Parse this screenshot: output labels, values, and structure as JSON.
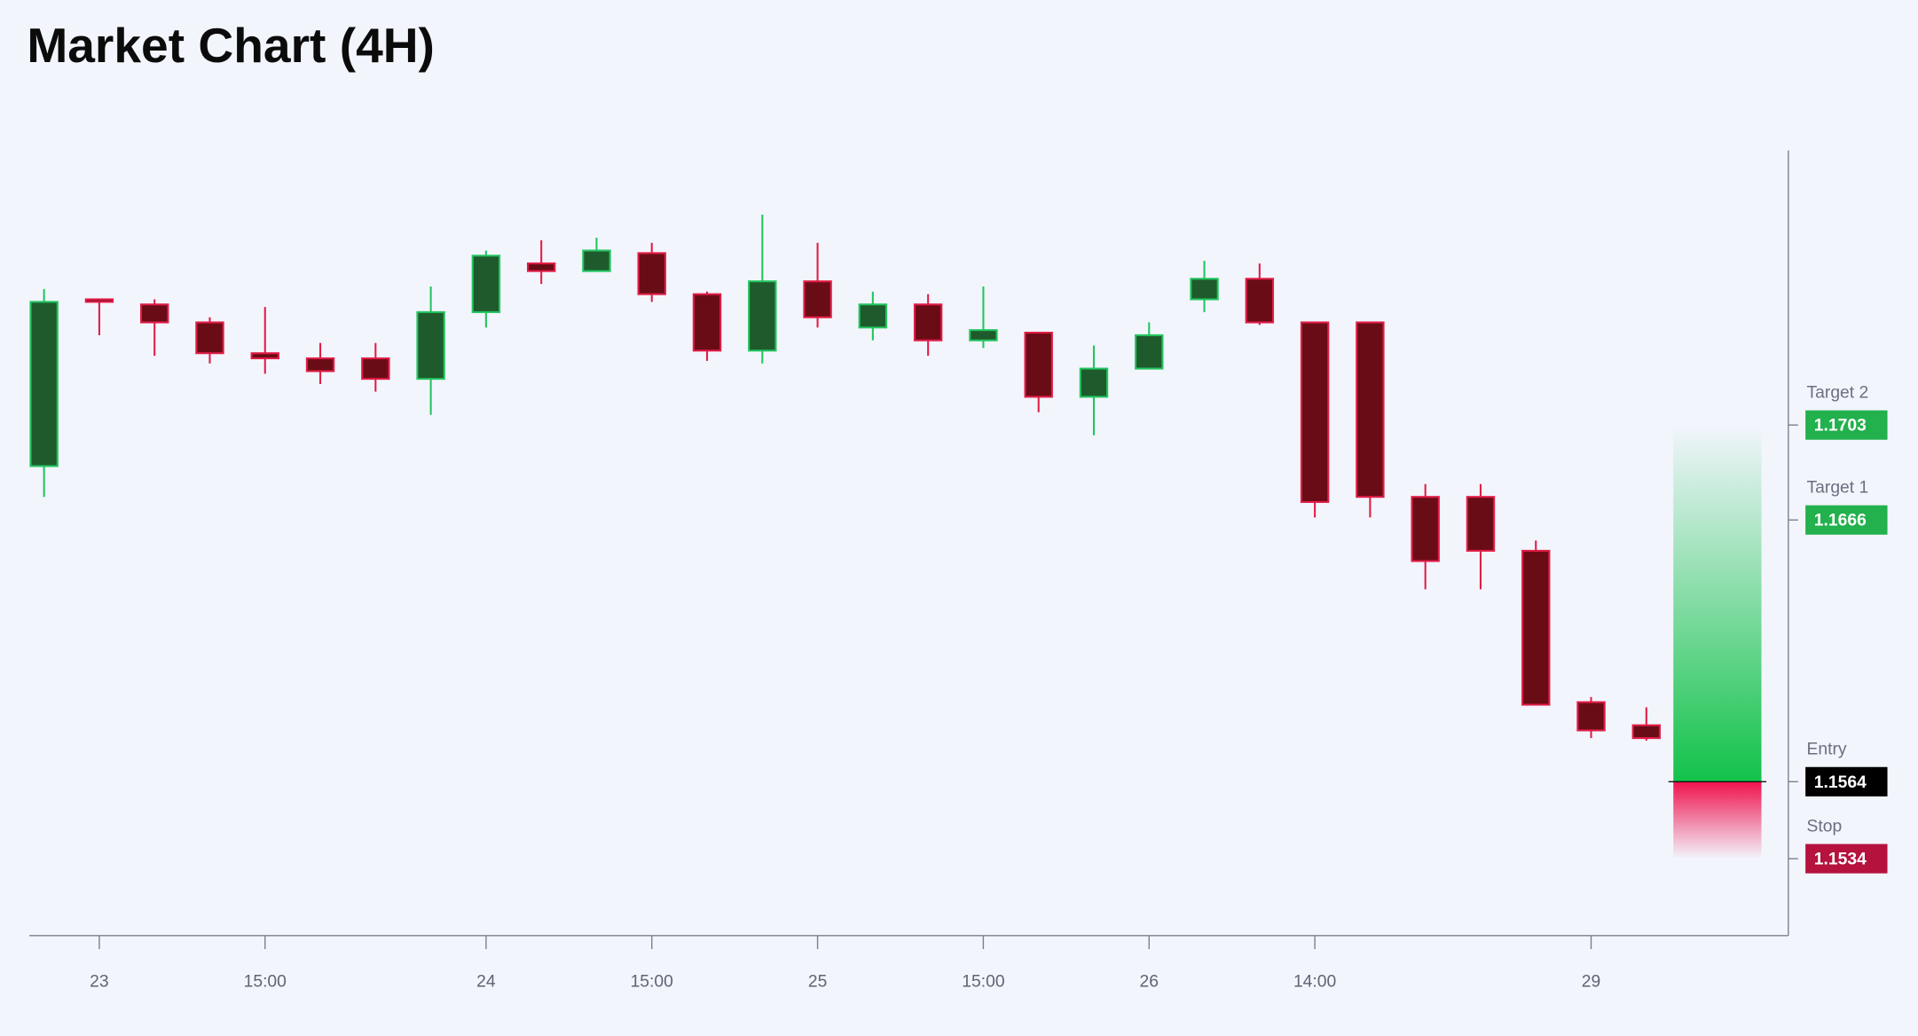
{
  "chart_data": {
    "type": "candlestick",
    "title": "Market Chart (4H)",
    "categories": [
      null,
      "23",
      null,
      null,
      "15:00",
      null,
      null,
      null,
      "24",
      null,
      null,
      "15:00",
      null,
      null,
      "25",
      null,
      null,
      "15:00",
      null,
      null,
      "26",
      null,
      null,
      "14:00",
      null,
      null,
      null,
      null,
      "29",
      null
    ],
    "series": [
      {
        "up_color": "#1f5a2c",
        "up_border": "#22c55e",
        "down_color": "#6a0c16",
        "down_border": "#e11d48",
        "open": [
          1.1687,
          1.1752,
          1.175,
          1.1743,
          1.1731,
          1.1729,
          1.1729,
          1.1721,
          1.1747,
          1.1766,
          1.1763,
          1.177,
          1.1754,
          1.1732,
          1.1759,
          1.1741,
          1.175,
          1.1736,
          1.1739,
          1.1714,
          1.1725,
          1.1752,
          1.176,
          1.1743,
          1.1743,
          1.1675,
          1.1675,
          1.1654,
          1.1595,
          1.1586
        ],
        "high": [
          1.1756,
          1.1752,
          1.1752,
          1.1745,
          1.1749,
          1.1735,
          1.1735,
          1.1757,
          1.1771,
          1.1775,
          1.1776,
          1.1774,
          1.1755,
          1.1785,
          1.1774,
          1.1755,
          1.1754,
          1.1757,
          1.1739,
          1.1734,
          1.1743,
          1.1767,
          1.1766,
          1.1743,
          1.1743,
          1.168,
          1.168,
          1.1658,
          1.1597,
          1.1593
        ],
        "low": [
          1.1675,
          1.1738,
          1.173,
          1.1727,
          1.1723,
          1.1719,
          1.1716,
          1.1707,
          1.1741,
          1.1758,
          1.1763,
          1.1751,
          1.1728,
          1.1727,
          1.1741,
          1.1736,
          1.173,
          1.1733,
          1.1708,
          1.1699,
          1.1725,
          1.1747,
          1.1742,
          1.1667,
          1.1667,
          1.1639,
          1.1639,
          1.1594,
          1.1581,
          1.158
        ],
        "close": [
          1.1751,
          1.1751,
          1.1743,
          1.1731,
          1.1729,
          1.1724,
          1.1721,
          1.1747,
          1.1769,
          1.1763,
          1.1771,
          1.1754,
          1.1732,
          1.1759,
          1.1745,
          1.175,
          1.1736,
          1.174,
          1.1714,
          1.1725,
          1.1738,
          1.176,
          1.1743,
          1.1673,
          1.1675,
          1.165,
          1.1654,
          1.1594,
          1.1584,
          1.1581
        ]
      }
    ],
    "ylim": [
      1.1504,
      1.181
    ],
    "levels": [
      {
        "name": "Target 2",
        "value": 1.1703,
        "color": "#22b14c"
      },
      {
        "name": "Target 1",
        "value": 1.1666,
        "color": "#22b14c"
      },
      {
        "name": "Entry",
        "value": 1.1564,
        "color": "#000000"
      },
      {
        "name": "Stop",
        "value": 1.1534,
        "color": "#b5123e"
      }
    ]
  }
}
